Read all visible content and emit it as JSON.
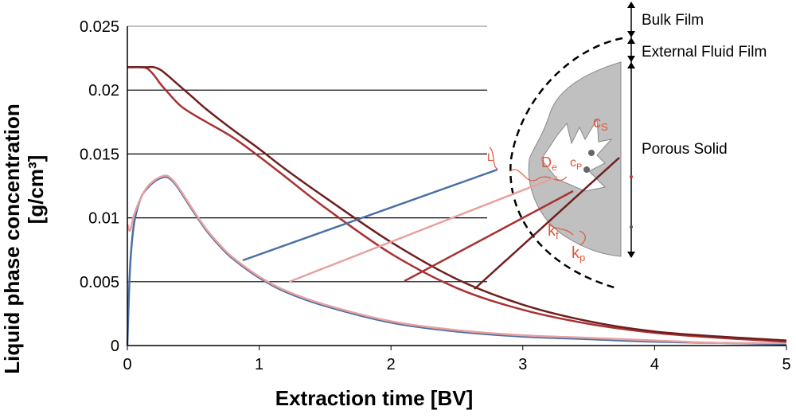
{
  "chart_data": {
    "type": "line",
    "xlabel": "Extraction time [BV]",
    "ylabel_line1": "Liquid phase concentration",
    "ylabel_line2": "[g/cm³]",
    "xlim": [
      0,
      5
    ],
    "ylim": [
      0,
      0.025
    ],
    "x_ticks": [
      "0",
      "1",
      "2",
      "3",
      "4",
      "5"
    ],
    "y_ticks": [
      "0",
      "0.005",
      "0.01",
      "0.015",
      "0.02",
      "0.025"
    ],
    "grid": "horizontal",
    "series": [
      {
        "color": "#4a6fa5",
        "x": [
          0,
          0.02,
          0.05,
          0.1,
          0.15,
          0.2,
          0.25,
          0.3,
          0.35,
          0.4,
          0.5,
          0.6,
          0.7,
          0.8,
          1.0,
          1.2,
          1.5,
          2.0,
          2.5,
          3.0,
          3.5,
          4.0,
          4.5,
          5.0
        ],
        "y": [
          0,
          0.006,
          0.0095,
          0.0115,
          0.0123,
          0.0128,
          0.0131,
          0.0132,
          0.0128,
          0.0121,
          0.0105,
          0.009,
          0.0078,
          0.0068,
          0.0053,
          0.0042,
          0.0031,
          0.0018,
          0.0011,
          0.0007,
          0.0005,
          0.0003,
          0.0002,
          0.0001
        ]
      },
      {
        "color": "#e8a0a0",
        "x": [
          0,
          0.02,
          0.05,
          0.1,
          0.15,
          0.2,
          0.25,
          0.3,
          0.35,
          0.4,
          0.5,
          0.6,
          0.7,
          0.8,
          1.0,
          1.2,
          1.5,
          2.0,
          2.5,
          3.0,
          3.5,
          4.0,
          4.5,
          5.0
        ],
        "y": [
          0.0095,
          0.009,
          0.0102,
          0.0115,
          0.0124,
          0.0129,
          0.0132,
          0.0133,
          0.0129,
          0.0122,
          0.0106,
          0.0091,
          0.0079,
          0.0069,
          0.0054,
          0.0043,
          0.0032,
          0.0019,
          0.0012,
          0.0008,
          0.0006,
          0.0004,
          0.0002,
          0.0002
        ]
      },
      {
        "color": "#a83232",
        "x": [
          0,
          0.05,
          0.1,
          0.15,
          0.2,
          0.25,
          0.3,
          0.4,
          0.5,
          0.6,
          0.8,
          1.0,
          1.2,
          1.5,
          2.0,
          2.5,
          3.0,
          3.5,
          4.0,
          4.5,
          5.0
        ],
        "y": [
          0.0218,
          0.0218,
          0.0218,
          0.0217,
          0.0212,
          0.0205,
          0.0199,
          0.0188,
          0.0181,
          0.0175,
          0.0163,
          0.0148,
          0.0132,
          0.0108,
          0.0072,
          0.0045,
          0.0028,
          0.0017,
          0.001,
          0.0006,
          0.0003
        ]
      },
      {
        "color": "#6e1f1f",
        "x": [
          0,
          0.05,
          0.1,
          0.15,
          0.2,
          0.25,
          0.3,
          0.4,
          0.5,
          0.6,
          0.8,
          1.0,
          1.2,
          1.5,
          2.0,
          2.5,
          3.0,
          3.5,
          4.0,
          4.5,
          5.0
        ],
        "y": [
          0.0218,
          0.0218,
          0.0218,
          0.0218,
          0.0218,
          0.0216,
          0.0212,
          0.0203,
          0.0194,
          0.0185,
          0.0169,
          0.0154,
          0.0138,
          0.0116,
          0.0081,
          0.0052,
          0.0032,
          0.0019,
          0.0011,
          0.0007,
          0.0004
        ]
      }
    ]
  },
  "annotations": {
    "bulk_film": "Bulk Film",
    "external_fluid_film": "External Fluid Film",
    "porous_solid": "Porous Solid",
    "sym_L": "L",
    "sym_cs": "c",
    "sym_cs_sub": "S",
    "sym_De": "D",
    "sym_De_sub": "e",
    "sym_cp": "c",
    "sym_cp_sub": "P",
    "sym_kf": "k",
    "sym_kf_sub": "f",
    "sym_kp": "k",
    "sym_kp_sub": "p"
  }
}
